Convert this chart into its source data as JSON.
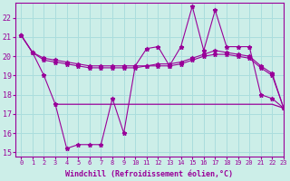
{
  "bg_color": "#cceee8",
  "grid_color": "#aadddd",
  "line_color": "#990099",
  "xlabel": "Windchill (Refroidissement éolien,°C)",
  "xlim": [
    -0.5,
    23
  ],
  "ylim": [
    14.8,
    22.8
  ],
  "yticks": [
    15,
    16,
    17,
    18,
    19,
    20,
    21,
    22
  ],
  "xticks": [
    0,
    1,
    2,
    3,
    4,
    5,
    6,
    7,
    8,
    9,
    10,
    11,
    12,
    13,
    14,
    15,
    16,
    17,
    18,
    19,
    20,
    21,
    22,
    23
  ],
  "spiky_x": [
    0,
    1,
    2,
    3,
    4,
    5,
    6,
    7,
    8,
    9,
    10,
    11,
    12,
    13,
    14,
    15,
    16,
    17,
    18,
    19,
    20,
    21,
    22,
    23
  ],
  "spiky_y": [
    21.1,
    20.2,
    19.0,
    17.5,
    15.2,
    15.4,
    15.4,
    15.4,
    17.8,
    16.0,
    19.5,
    20.4,
    20.5,
    19.5,
    20.5,
    22.6,
    20.3,
    22.4,
    20.5,
    20.5,
    20.5,
    18.0,
    17.8,
    17.3
  ],
  "smooth1_x": [
    0,
    1,
    2,
    3,
    4,
    5,
    6,
    7,
    8,
    9,
    10,
    11,
    12,
    13,
    14,
    15,
    16,
    17,
    18,
    19,
    20,
    21,
    22,
    23
  ],
  "smooth1_y": [
    21.1,
    20.2,
    19.8,
    19.7,
    19.6,
    19.5,
    19.4,
    19.4,
    19.4,
    19.4,
    19.4,
    19.5,
    19.5,
    19.5,
    19.6,
    19.8,
    20.0,
    20.1,
    20.1,
    20.0,
    19.9,
    19.4,
    19.0,
    17.3
  ],
  "smooth2_x": [
    0,
    1,
    2,
    3,
    4,
    5,
    6,
    7,
    8,
    9,
    10,
    11,
    12,
    13,
    14,
    15,
    16,
    17,
    18,
    19,
    20,
    21,
    22,
    23
  ],
  "smooth2_y": [
    21.1,
    20.2,
    19.9,
    19.8,
    19.7,
    19.6,
    19.5,
    19.5,
    19.5,
    19.5,
    19.5,
    19.5,
    19.6,
    19.6,
    19.7,
    19.9,
    20.1,
    20.3,
    20.2,
    20.1,
    20.0,
    19.5,
    19.1,
    17.3
  ],
  "flat_x": [
    3,
    9,
    10,
    11,
    12,
    13,
    14,
    15,
    16,
    17,
    18,
    19,
    20,
    21,
    22,
    23
  ],
  "flat_y": [
    17.5,
    17.5,
    17.5,
    17.5,
    17.5,
    17.5,
    17.5,
    17.5,
    17.5,
    17.5,
    17.5,
    17.5,
    17.5,
    17.5,
    17.5,
    17.3
  ]
}
